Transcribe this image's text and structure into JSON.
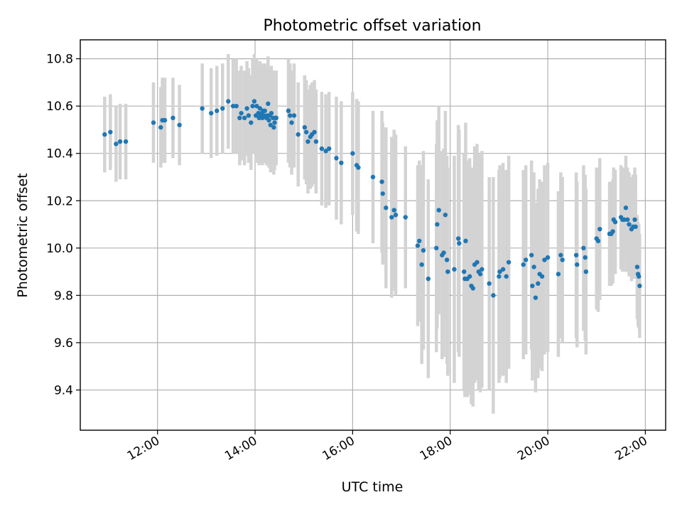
{
  "chart_data": {
    "type": "scatter",
    "title": "Photometric offset variation",
    "xlabel": "UTC time",
    "ylabel": "Photometric offset",
    "xlim": [
      "10:25",
      "22:25"
    ],
    "ylim": [
      9.23,
      10.88
    ],
    "grid": true,
    "x_ticks": [
      "12:00",
      "14:00",
      "16:00",
      "18:00",
      "20:00",
      "22:00"
    ],
    "y_ticks": [
      9.4,
      9.6,
      9.8,
      10.0,
      10.2,
      10.4,
      10.6,
      10.8
    ],
    "colors": {
      "marker": "#1f77b4",
      "errorbar": "#d3d3d3"
    },
    "series": [
      {
        "marker": "dot",
        "errorbars": true,
        "points": [
          {
            "t": "10:55",
            "y": 10.48,
            "err": 0.16
          },
          {
            "t": "11:02",
            "y": 10.49,
            "err": 0.16
          },
          {
            "t": "11:09",
            "y": 10.44,
            "err": 0.16
          },
          {
            "t": "11:14",
            "y": 10.45,
            "err": 0.16
          },
          {
            "t": "11:21",
            "y": 10.45,
            "err": 0.16
          },
          {
            "t": "11:55",
            "y": 10.53,
            "err": 0.17
          },
          {
            "t": "12:04",
            "y": 10.51,
            "err": 0.17
          },
          {
            "t": "12:06",
            "y": 10.54,
            "err": 0.18
          },
          {
            "t": "12:09",
            "y": 10.54,
            "err": 0.18
          },
          {
            "t": "12:19",
            "y": 10.55,
            "err": 0.17
          },
          {
            "t": "12:27",
            "y": 10.52,
            "err": 0.17
          },
          {
            "t": "12:55",
            "y": 10.59,
            "err": 0.19
          },
          {
            "t": "13:06",
            "y": 10.57,
            "err": 0.19
          },
          {
            "t": "13:13",
            "y": 10.58,
            "err": 0.19
          },
          {
            "t": "13:20",
            "y": 10.59,
            "err": 0.19
          },
          {
            "t": "13:27",
            "y": 10.62,
            "err": 0.2
          },
          {
            "t": "13:33",
            "y": 10.6,
            "err": 0.2
          },
          {
            "t": "13:37",
            "y": 10.6,
            "err": 0.2
          },
          {
            "t": "13:41",
            "y": 10.55,
            "err": 0.2
          },
          {
            "t": "13:43",
            "y": 10.57,
            "err": 0.2
          },
          {
            "t": "13:47",
            "y": 10.55,
            "err": 0.2
          },
          {
            "t": "13:50",
            "y": 10.59,
            "err": 0.2
          },
          {
            "t": "13:52",
            "y": 10.56,
            "err": 0.2
          },
          {
            "t": "13:55",
            "y": 10.53,
            "err": 0.2
          },
          {
            "t": "13:57",
            "y": 10.6,
            "err": 0.2
          },
          {
            "t": "13:59",
            "y": 10.62,
            "err": 0.2
          },
          {
            "t": "14:01",
            "y": 10.56,
            "err": 0.2
          },
          {
            "t": "14:02",
            "y": 10.6,
            "err": 0.2
          },
          {
            "t": "14:04",
            "y": 10.57,
            "err": 0.2
          },
          {
            "t": "14:05",
            "y": 10.55,
            "err": 0.2
          },
          {
            "t": "14:06",
            "y": 10.59,
            "err": 0.2
          },
          {
            "t": "14:07",
            "y": 10.56,
            "err": 0.2
          },
          {
            "t": "14:08",
            "y": 10.57,
            "err": 0.2
          },
          {
            "t": "14:09",
            "y": 10.55,
            "err": 0.2
          },
          {
            "t": "14:10",
            "y": 10.58,
            "err": 0.2
          },
          {
            "t": "14:11",
            "y": 10.56,
            "err": 0.2
          },
          {
            "t": "14:12",
            "y": 10.58,
            "err": 0.2
          },
          {
            "t": "14:14",
            "y": 10.55,
            "err": 0.2
          },
          {
            "t": "14:15",
            "y": 10.56,
            "err": 0.2
          },
          {
            "t": "14:16",
            "y": 10.61,
            "err": 0.2
          },
          {
            "t": "14:17",
            "y": 10.54,
            "err": 0.2
          },
          {
            "t": "14:18",
            "y": 10.56,
            "err": 0.2
          },
          {
            "t": "14:19",
            "y": 10.52,
            "err": 0.2
          },
          {
            "t": "14:20",
            "y": 10.57,
            "err": 0.2
          },
          {
            "t": "14:22",
            "y": 10.55,
            "err": 0.2
          },
          {
            "t": "14:23",
            "y": 10.51,
            "err": 0.2
          },
          {
            "t": "14:24",
            "y": 10.53,
            "err": 0.2
          },
          {
            "t": "14:25",
            "y": 10.55,
            "err": 0.2
          },
          {
            "t": "14:26",
            "y": 10.55,
            "err": 0.2
          },
          {
            "t": "14:41",
            "y": 10.58,
            "err": 0.22
          },
          {
            "t": "14:43",
            "y": 10.56,
            "err": 0.22
          },
          {
            "t": "14:45",
            "y": 10.53,
            "err": 0.22
          },
          {
            "t": "14:48",
            "y": 10.56,
            "err": 0.22
          },
          {
            "t": "14:53",
            "y": 10.48,
            "err": 0.22
          },
          {
            "t": "15:01",
            "y": 10.51,
            "err": 0.22
          },
          {
            "t": "15:03",
            "y": 10.49,
            "err": 0.22
          },
          {
            "t": "15:05",
            "y": 10.45,
            "err": 0.22
          },
          {
            "t": "15:08",
            "y": 10.47,
            "err": 0.22
          },
          {
            "t": "15:10",
            "y": 10.48,
            "err": 0.22
          },
          {
            "t": "15:13",
            "y": 10.49,
            "err": 0.22
          },
          {
            "t": "15:15",
            "y": 10.45,
            "err": 0.22
          },
          {
            "t": "15:22",
            "y": 10.42,
            "err": 0.24
          },
          {
            "t": "15:27",
            "y": 10.41,
            "err": 0.24
          },
          {
            "t": "15:31",
            "y": 10.42,
            "err": 0.24
          },
          {
            "t": "15:40",
            "y": 10.38,
            "err": 0.26
          },
          {
            "t": "15:46",
            "y": 10.36,
            "err": 0.26
          },
          {
            "t": "16:00",
            "y": 10.4,
            "err": 0.26
          },
          {
            "t": "16:05",
            "y": 10.35,
            "err": 0.28
          },
          {
            "t": "16:07",
            "y": 10.34,
            "err": 0.28
          },
          {
            "t": "16:25",
            "y": 10.3,
            "err": 0.28
          },
          {
            "t": "16:36",
            "y": 10.28,
            "err": 0.3
          },
          {
            "t": "16:37",
            "y": 10.23,
            "err": 0.3
          },
          {
            "t": "16:41",
            "y": 10.17,
            "err": 0.34
          },
          {
            "t": "16:48",
            "y": 10.13,
            "err": 0.34
          },
          {
            "t": "16:51",
            "y": 10.16,
            "err": 0.34
          },
          {
            "t": "16:53",
            "y": 10.14,
            "err": 0.34
          },
          {
            "t": "17:05",
            "y": 10.13,
            "err": 0.3
          },
          {
            "t": "17:20",
            "y": 10.01,
            "err": 0.34
          },
          {
            "t": "17:22",
            "y": 10.03,
            "err": 0.34
          },
          {
            "t": "17:25",
            "y": 9.93,
            "err": 0.42
          },
          {
            "t": "17:27",
            "y": 9.99,
            "err": 0.42
          },
          {
            "t": "17:33",
            "y": 9.87,
            "err": 0.42
          },
          {
            "t": "17:43",
            "y": 10.0,
            "err": 0.44
          },
          {
            "t": "17:44",
            "y": 10.1,
            "err": 0.44
          },
          {
            "t": "17:46",
            "y": 10.16,
            "err": 0.44
          },
          {
            "t": "17:50",
            "y": 9.97,
            "err": 0.44
          },
          {
            "t": "17:52",
            "y": 9.98,
            "err": 0.44
          },
          {
            "t": "17:54",
            "y": 10.14,
            "err": 0.44
          },
          {
            "t": "17:56",
            "y": 9.95,
            "err": 0.44
          },
          {
            "t": "17:57",
            "y": 9.9,
            "err": 0.44
          },
          {
            "t": "18:05",
            "y": 9.91,
            "err": 0.48
          },
          {
            "t": "18:10",
            "y": 10.04,
            "err": 0.48
          },
          {
            "t": "18:11",
            "y": 10.02,
            "err": 0.48
          },
          {
            "t": "18:17",
            "y": 9.9,
            "err": 0.5
          },
          {
            "t": "18:18",
            "y": 9.87,
            "err": 0.5
          },
          {
            "t": "18:19",
            "y": 10.03,
            "err": 0.5
          },
          {
            "t": "18:21",
            "y": 9.87,
            "err": 0.5
          },
          {
            "t": "18:24",
            "y": 9.88,
            "err": 0.5
          },
          {
            "t": "18:26",
            "y": 9.84,
            "err": 0.5
          },
          {
            "t": "18:28",
            "y": 9.83,
            "err": 0.5
          },
          {
            "t": "18:30",
            "y": 9.93,
            "err": 0.5
          },
          {
            "t": "18:33",
            "y": 9.94,
            "err": 0.5
          },
          {
            "t": "18:35",
            "y": 9.9,
            "err": 0.5
          },
          {
            "t": "18:37",
            "y": 9.89,
            "err": 0.5
          },
          {
            "t": "18:39",
            "y": 9.91,
            "err": 0.5
          },
          {
            "t": "18:48",
            "y": 9.85,
            "err": 0.45
          },
          {
            "t": "18:53",
            "y": 9.8,
            "err": 0.5
          },
          {
            "t": "19:00",
            "y": 9.88,
            "err": 0.45
          },
          {
            "t": "19:01",
            "y": 9.9,
            "err": 0.45
          },
          {
            "t": "19:05",
            "y": 9.91,
            "err": 0.45
          },
          {
            "t": "19:09",
            "y": 9.88,
            "err": 0.45
          },
          {
            "t": "19:12",
            "y": 9.94,
            "err": 0.45
          },
          {
            "t": "19:30",
            "y": 9.93,
            "err": 0.4
          },
          {
            "t": "19:33",
            "y": 9.95,
            "err": 0.4
          },
          {
            "t": "19:40",
            "y": 9.97,
            "err": 0.4
          },
          {
            "t": "19:41",
            "y": 9.84,
            "err": 0.4
          },
          {
            "t": "19:43",
            "y": 9.92,
            "err": 0.4
          },
          {
            "t": "19:45",
            "y": 9.79,
            "err": 0.4
          },
          {
            "t": "19:48",
            "y": 9.85,
            "err": 0.4
          },
          {
            "t": "19:50",
            "y": 9.89,
            "err": 0.4
          },
          {
            "t": "19:53",
            "y": 9.88,
            "err": 0.4
          },
          {
            "t": "19:56",
            "y": 9.95,
            "err": 0.4
          },
          {
            "t": "20:00",
            "y": 9.96,
            "err": 0.4
          },
          {
            "t": "20:13",
            "y": 9.89,
            "err": 0.35
          },
          {
            "t": "20:16",
            "y": 9.97,
            "err": 0.35
          },
          {
            "t": "20:18",
            "y": 9.95,
            "err": 0.35
          },
          {
            "t": "20:35",
            "y": 9.97,
            "err": 0.35
          },
          {
            "t": "20:36",
            "y": 9.93,
            "err": 0.35
          },
          {
            "t": "20:44",
            "y": 10.0,
            "err": 0.35
          },
          {
            "t": "20:46",
            "y": 9.96,
            "err": 0.35
          },
          {
            "t": "20:47",
            "y": 9.9,
            "err": 0.35
          },
          {
            "t": "21:00",
            "y": 10.04,
            "err": 0.3
          },
          {
            "t": "21:02",
            "y": 10.03,
            "err": 0.3
          },
          {
            "t": "21:04",
            "y": 10.08,
            "err": 0.3
          },
          {
            "t": "21:16",
            "y": 10.06,
            "err": 0.22
          },
          {
            "t": "21:18",
            "y": 10.06,
            "err": 0.22
          },
          {
            "t": "21:20",
            "y": 10.07,
            "err": 0.22
          },
          {
            "t": "21:21",
            "y": 10.12,
            "err": 0.22
          },
          {
            "t": "21:23",
            "y": 10.11,
            "err": 0.22
          },
          {
            "t": "21:30",
            "y": 10.13,
            "err": 0.22
          },
          {
            "t": "21:32",
            "y": 10.12,
            "err": 0.22
          },
          {
            "t": "21:34",
            "y": 10.12,
            "err": 0.22
          },
          {
            "t": "21:36",
            "y": 10.17,
            "err": 0.22
          },
          {
            "t": "21:38",
            "y": 10.12,
            "err": 0.22
          },
          {
            "t": "21:40",
            "y": 10.1,
            "err": 0.22
          },
          {
            "t": "21:43",
            "y": 10.08,
            "err": 0.22
          },
          {
            "t": "21:45",
            "y": 10.09,
            "err": 0.22
          },
          {
            "t": "21:47",
            "y": 10.12,
            "err": 0.22
          },
          {
            "t": "21:48",
            "y": 10.09,
            "err": 0.22
          },
          {
            "t": "21:50",
            "y": 9.92,
            "err": 0.22
          },
          {
            "t": "21:51",
            "y": 9.89,
            "err": 0.22
          },
          {
            "t": "21:52",
            "y": 9.88,
            "err": 0.22
          },
          {
            "t": "21:53",
            "y": 9.84,
            "err": 0.22
          }
        ]
      }
    ]
  }
}
